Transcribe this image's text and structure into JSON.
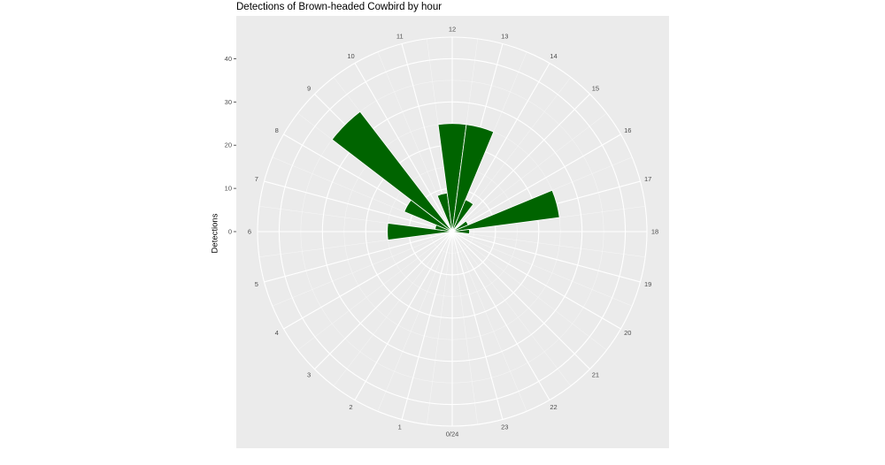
{
  "chart_data": {
    "type": "bar",
    "coord": "polar",
    "title": "Detections of Brown-headed Cowbird by hour",
    "xlabel": "",
    "ylabel": "Detections",
    "hour_labels": [
      "0/24",
      "1",
      "2",
      "3",
      "4",
      "5",
      "6",
      "7",
      "8",
      "9",
      "10",
      "11",
      "12",
      "13",
      "14",
      "15",
      "16",
      "17",
      "18",
      "19",
      "20",
      "21",
      "22",
      "23"
    ],
    "y_ticks": [
      0,
      10,
      20,
      30,
      40
    ],
    "ylim": [
      0,
      45
    ],
    "grid": true,
    "hours": [
      0,
      1,
      2,
      3,
      4,
      5,
      6,
      7,
      8,
      9,
      10,
      11,
      12,
      13,
      14,
      15,
      16,
      17,
      18,
      19,
      20,
      21,
      22,
      23
    ],
    "values": [
      0,
      0,
      0,
      0,
      0,
      0,
      15,
      4,
      12,
      35,
      1,
      9,
      25,
      25,
      8,
      1,
      4,
      25,
      4,
      0,
      0,
      0,
      0,
      0
    ],
    "bar_color": "#006400",
    "panel_color": "#ebebeb",
    "grid_color": "#ffffff"
  }
}
